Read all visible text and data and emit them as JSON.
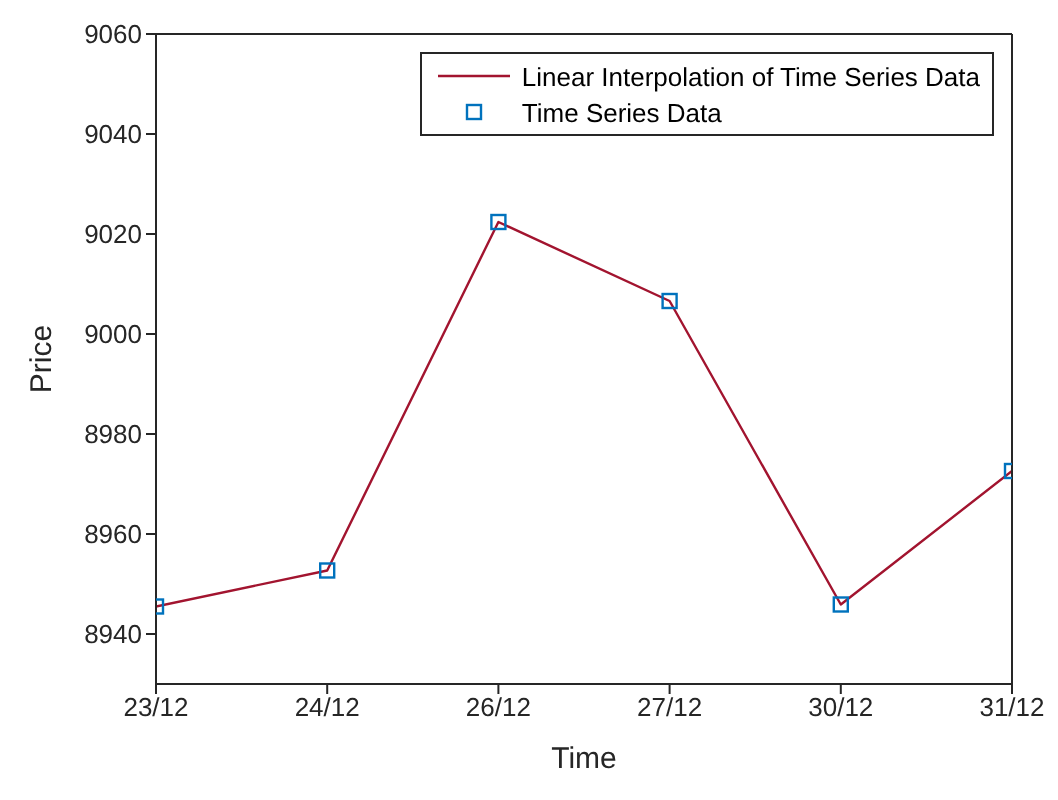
{
  "chart_data": {
    "type": "line",
    "xlabel": "Time",
    "ylabel": "Price",
    "categories": [
      "23/12",
      "24/12",
      "26/12",
      "27/12",
      "30/12",
      "31/12"
    ],
    "series": [
      {
        "name": "Linear Interpolation of Time Series Data",
        "color": "#a2142f",
        "marker": "none",
        "values": [
          8945.5,
          8952.7,
          9022.4,
          9006.6,
          8945.9,
          8972.6
        ]
      },
      {
        "name": "Time Series Data",
        "type": "scatter",
        "color": "#0072bd",
        "marker": "square",
        "values": [
          8945.5,
          8952.7,
          9022.4,
          9006.6,
          8945.9,
          8972.6
        ]
      }
    ],
    "ylim": [
      8930,
      9060
    ],
    "yticks": [
      8940,
      8960,
      8980,
      9000,
      9020,
      9040,
      9060
    ],
    "grid": false,
    "legend": "top right"
  }
}
